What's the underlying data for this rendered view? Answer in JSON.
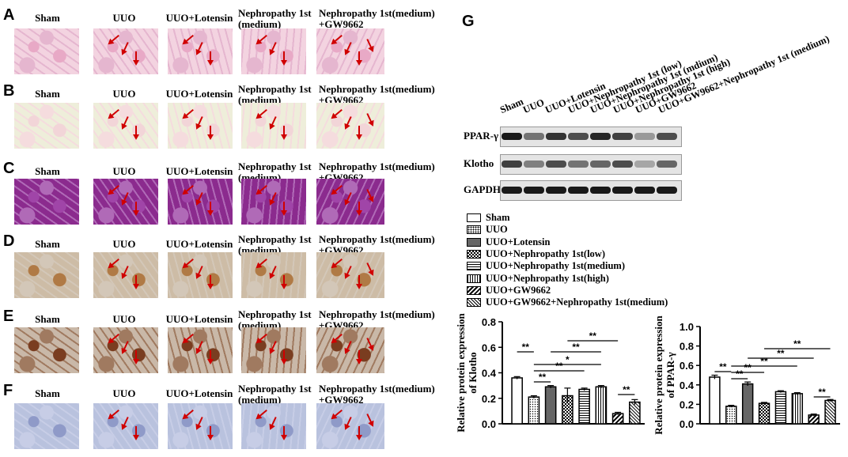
{
  "panels": [
    {
      "letter": "A",
      "tint": "he"
    },
    {
      "letter": "B",
      "tint": "sirius"
    },
    {
      "letter": "C",
      "tint": "masson"
    },
    {
      "letter": "D",
      "tint": "ihc"
    },
    {
      "letter": "E",
      "tint": "ihc2"
    },
    {
      "letter": "F",
      "tint": "ihcblue"
    }
  ],
  "columns": [
    "Sham",
    "UUO",
    "UUO+Lotensin",
    "Nephropathy 1st\n(medium)",
    "Nephropathy 1st(medium)\n+GW9662"
  ],
  "panel_g": {
    "letter": "G",
    "lanes": [
      "Sham",
      "UUO",
      "UUO+Lotensin",
      "UUO+Nephropathy 1st (low)",
      "UUO+Nephropathy 1st (mdium)",
      "UUO+Nephropathy 1st (high)",
      "UUO+GW9662",
      "UUO+GW9662+Nephropathy 1st (medium)"
    ],
    "blots": [
      "PPAR-γ",
      "Klotho",
      "GAPDH"
    ],
    "legend": [
      "Sham",
      "UUO",
      "UUO+Lotensin",
      "UUO+Nephropathy 1st(low)",
      "UUO+Nephropathy 1st(medium)",
      "UUO+Nephropathy 1st(high)",
      "UUO+GW9662",
      "UUO+GW9662+Nephropathy 1st(medium)"
    ]
  },
  "chart_data": [
    {
      "type": "bar",
      "ylabel": "Relative protein expression\nof Klotho",
      "ylim": [
        0,
        0.8
      ],
      "yticks": [
        "0.0",
        "0.2",
        "0.4",
        "0.6",
        "0.8"
      ],
      "values": [
        0.36,
        0.21,
        0.29,
        0.22,
        0.27,
        0.29,
        0.08,
        0.17
      ],
      "errors": [
        0.01,
        0.01,
        0.01,
        0.06,
        0.01,
        0.01,
        0.01,
        0.02
      ],
      "sig": [
        "**",
        "**",
        "*",
        "**",
        "**",
        "**",
        "**"
      ]
    },
    {
      "type": "bar",
      "ylabel": "Relative protein expression\nof PPAR-γ",
      "ylim": [
        0,
        1.0
      ],
      "yticks": [
        "0.0",
        "0.2",
        "0.4",
        "0.6",
        "0.8",
        "1.0"
      ],
      "values": [
        0.48,
        0.18,
        0.41,
        0.21,
        0.33,
        0.31,
        0.09,
        0.24
      ],
      "errors": [
        0.02,
        0.01,
        0.02,
        0.01,
        0.01,
        0.01,
        0.01,
        0.01
      ],
      "sig": [
        "**",
        "**",
        "**",
        "**",
        "**",
        "**",
        "**"
      ]
    }
  ]
}
